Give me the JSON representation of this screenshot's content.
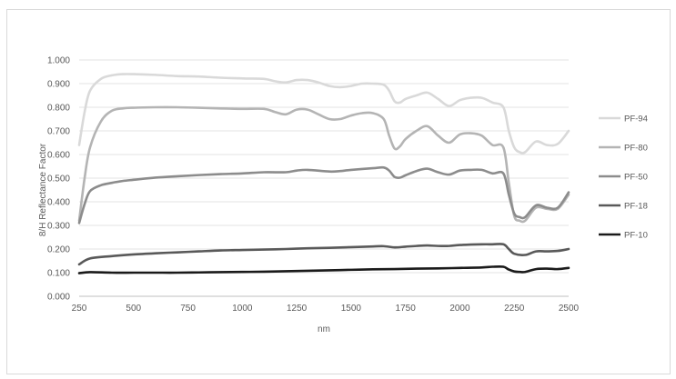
{
  "chart_data": {
    "type": "line",
    "title": "",
    "xlabel": "nm",
    "ylabel": "8/H Reflectance Factor",
    "xlim": [
      250,
      2500
    ],
    "ylim": [
      0,
      1
    ],
    "x_ticks": [
      "250",
      "500",
      "750",
      "1000",
      "1250",
      "1500",
      "1750",
      "2000",
      "2250",
      "2500"
    ],
    "y_ticks": [
      "0.000",
      "0.100",
      "0.200",
      "0.300",
      "0.400",
      "0.500",
      "0.600",
      "0.700",
      "0.800",
      "0.900",
      "1.000"
    ],
    "grid": "horizontal",
    "legend_position": "right",
    "series": [
      {
        "name": "PF-94",
        "color": "#d9d9d9",
        "points": [
          [
            250,
            0.64
          ],
          [
            275,
            0.78
          ],
          [
            300,
            0.87
          ],
          [
            350,
            0.92
          ],
          [
            400,
            0.935
          ],
          [
            450,
            0.94
          ],
          [
            500,
            0.94
          ],
          [
            600,
            0.937
          ],
          [
            700,
            0.932
          ],
          [
            800,
            0.93
          ],
          [
            900,
            0.925
          ],
          [
            1000,
            0.922
          ],
          [
            1100,
            0.92
          ],
          [
            1150,
            0.91
          ],
          [
            1200,
            0.905
          ],
          [
            1250,
            0.915
          ],
          [
            1300,
            0.915
          ],
          [
            1350,
            0.905
          ],
          [
            1400,
            0.89
          ],
          [
            1450,
            0.885
          ],
          [
            1500,
            0.89
          ],
          [
            1550,
            0.9
          ],
          [
            1600,
            0.9
          ],
          [
            1650,
            0.895
          ],
          [
            1675,
            0.87
          ],
          [
            1700,
            0.825
          ],
          [
            1725,
            0.82
          ],
          [
            1750,
            0.835
          ],
          [
            1800,
            0.85
          ],
          [
            1850,
            0.862
          ],
          [
            1900,
            0.835
          ],
          [
            1950,
            0.805
          ],
          [
            2000,
            0.83
          ],
          [
            2050,
            0.84
          ],
          [
            2100,
            0.84
          ],
          [
            2150,
            0.82
          ],
          [
            2200,
            0.8
          ],
          [
            2225,
            0.7
          ],
          [
            2250,
            0.63
          ],
          [
            2275,
            0.61
          ],
          [
            2300,
            0.61
          ],
          [
            2350,
            0.655
          ],
          [
            2400,
            0.64
          ],
          [
            2450,
            0.645
          ],
          [
            2500,
            0.7
          ]
        ]
      },
      {
        "name": "PF-80",
        "color": "#b4b4b4",
        "points": [
          [
            250,
            0.32
          ],
          [
            275,
            0.5
          ],
          [
            300,
            0.63
          ],
          [
            350,
            0.74
          ],
          [
            400,
            0.785
          ],
          [
            450,
            0.795
          ],
          [
            500,
            0.798
          ],
          [
            600,
            0.8
          ],
          [
            700,
            0.8
          ],
          [
            800,
            0.798
          ],
          [
            900,
            0.795
          ],
          [
            1000,
            0.793
          ],
          [
            1100,
            0.793
          ],
          [
            1150,
            0.78
          ],
          [
            1200,
            0.77
          ],
          [
            1250,
            0.79
          ],
          [
            1300,
            0.79
          ],
          [
            1350,
            0.77
          ],
          [
            1400,
            0.75
          ],
          [
            1450,
            0.75
          ],
          [
            1500,
            0.765
          ],
          [
            1550,
            0.775
          ],
          [
            1600,
            0.775
          ],
          [
            1650,
            0.75
          ],
          [
            1675,
            0.68
          ],
          [
            1700,
            0.625
          ],
          [
            1725,
            0.635
          ],
          [
            1750,
            0.665
          ],
          [
            1800,
            0.7
          ],
          [
            1850,
            0.72
          ],
          [
            1900,
            0.68
          ],
          [
            1950,
            0.65
          ],
          [
            2000,
            0.685
          ],
          [
            2050,
            0.69
          ],
          [
            2100,
            0.68
          ],
          [
            2150,
            0.64
          ],
          [
            2200,
            0.63
          ],
          [
            2225,
            0.48
          ],
          [
            2250,
            0.34
          ],
          [
            2275,
            0.32
          ],
          [
            2300,
            0.32
          ],
          [
            2350,
            0.375
          ],
          [
            2400,
            0.37
          ],
          [
            2450,
            0.37
          ],
          [
            2500,
            0.43
          ]
        ]
      },
      {
        "name": "PF-50",
        "color": "#8c8c8c",
        "points": [
          [
            250,
            0.31
          ],
          [
            275,
            0.39
          ],
          [
            300,
            0.445
          ],
          [
            350,
            0.47
          ],
          [
            400,
            0.48
          ],
          [
            450,
            0.488
          ],
          [
            500,
            0.493
          ],
          [
            600,
            0.502
          ],
          [
            700,
            0.508
          ],
          [
            800,
            0.513
          ],
          [
            900,
            0.517
          ],
          [
            1000,
            0.52
          ],
          [
            1100,
            0.525
          ],
          [
            1200,
            0.525
          ],
          [
            1250,
            0.532
          ],
          [
            1300,
            0.535
          ],
          [
            1400,
            0.528
          ],
          [
            1450,
            0.53
          ],
          [
            1500,
            0.535
          ],
          [
            1600,
            0.542
          ],
          [
            1650,
            0.545
          ],
          [
            1675,
            0.532
          ],
          [
            1700,
            0.505
          ],
          [
            1725,
            0.502
          ],
          [
            1750,
            0.512
          ],
          [
            1800,
            0.53
          ],
          [
            1850,
            0.54
          ],
          [
            1900,
            0.525
          ],
          [
            1950,
            0.515
          ],
          [
            2000,
            0.532
          ],
          [
            2050,
            0.535
          ],
          [
            2100,
            0.535
          ],
          [
            2150,
            0.52
          ],
          [
            2200,
            0.52
          ],
          [
            2225,
            0.43
          ],
          [
            2250,
            0.35
          ],
          [
            2275,
            0.335
          ],
          [
            2300,
            0.335
          ],
          [
            2350,
            0.385
          ],
          [
            2400,
            0.375
          ],
          [
            2450,
            0.375
          ],
          [
            2500,
            0.44
          ]
        ]
      },
      {
        "name": "PF-18",
        "color": "#595959",
        "points": [
          [
            250,
            0.135
          ],
          [
            300,
            0.16
          ],
          [
            400,
            0.17
          ],
          [
            500,
            0.177
          ],
          [
            600,
            0.182
          ],
          [
            700,
            0.186
          ],
          [
            800,
            0.19
          ],
          [
            900,
            0.194
          ],
          [
            1000,
            0.196
          ],
          [
            1100,
            0.198
          ],
          [
            1200,
            0.2
          ],
          [
            1300,
            0.203
          ],
          [
            1400,
            0.205
          ],
          [
            1500,
            0.208
          ],
          [
            1600,
            0.211
          ],
          [
            1650,
            0.212
          ],
          [
            1700,
            0.207
          ],
          [
            1750,
            0.21
          ],
          [
            1800,
            0.213
          ],
          [
            1850,
            0.215
          ],
          [
            1900,
            0.213
          ],
          [
            1950,
            0.213
          ],
          [
            2000,
            0.217
          ],
          [
            2100,
            0.22
          ],
          [
            2150,
            0.22
          ],
          [
            2200,
            0.22
          ],
          [
            2225,
            0.2
          ],
          [
            2250,
            0.18
          ],
          [
            2300,
            0.175
          ],
          [
            2350,
            0.19
          ],
          [
            2400,
            0.19
          ],
          [
            2450,
            0.192
          ],
          [
            2500,
            0.2
          ]
        ]
      },
      {
        "name": "PF-10",
        "color": "#1a1a1a",
        "points": [
          [
            250,
            0.098
          ],
          [
            300,
            0.102
          ],
          [
            400,
            0.1
          ],
          [
            500,
            0.1
          ],
          [
            600,
            0.1
          ],
          [
            700,
            0.1
          ],
          [
            800,
            0.101
          ],
          [
            900,
            0.102
          ],
          [
            1000,
            0.103
          ],
          [
            1100,
            0.104
          ],
          [
            1200,
            0.106
          ],
          [
            1300,
            0.108
          ],
          [
            1400,
            0.11
          ],
          [
            1500,
            0.112
          ],
          [
            1600,
            0.114
          ],
          [
            1700,
            0.115
          ],
          [
            1800,
            0.117
          ],
          [
            1900,
            0.118
          ],
          [
            2000,
            0.12
          ],
          [
            2100,
            0.122
          ],
          [
            2150,
            0.125
          ],
          [
            2200,
            0.125
          ],
          [
            2225,
            0.113
          ],
          [
            2250,
            0.105
          ],
          [
            2275,
            0.103
          ],
          [
            2300,
            0.103
          ],
          [
            2350,
            0.115
          ],
          [
            2400,
            0.117
          ],
          [
            2450,
            0.115
          ],
          [
            2500,
            0.12
          ]
        ]
      }
    ]
  }
}
